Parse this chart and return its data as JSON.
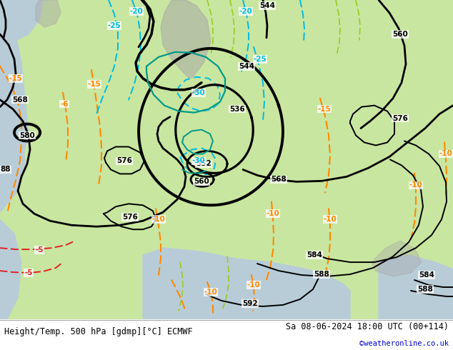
{
  "title_left": "Height/Temp. 500 hPa [gdmp][°C] ECMWF",
  "title_right": "Sa 08-06-2024 18:00 UTC (00+114)",
  "credit": "©weatheronline.co.uk",
  "land_color": "#c8e6a0",
  "sea_color": "#b8ccd8",
  "rock_color": "#a8a8a8",
  "height_color": "#000000",
  "temp_warm_color": "#ff8800",
  "temp_cold_color": "#00bbdd",
  "temp_vcold_color": "#dd2222",
  "teal_color": "#009988",
  "ygreen_color": "#99cc22",
  "footer_line_color": "#333333",
  "font_size_label": 7.5,
  "font_size_footer": 8.5
}
